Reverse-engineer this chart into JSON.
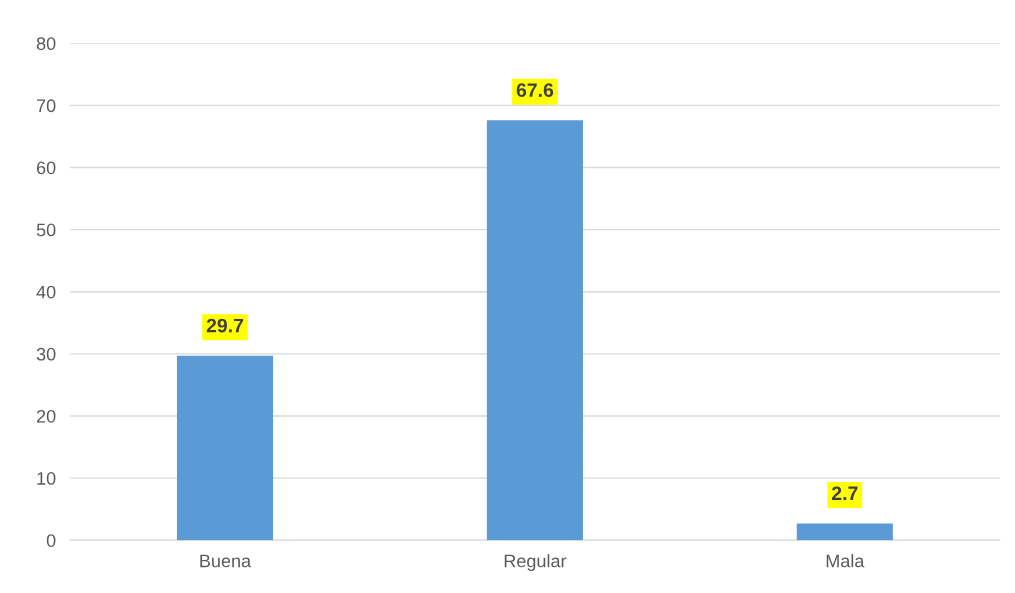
{
  "chart_data": {
    "type": "bar",
    "categories": [
      "Buena",
      "Regular",
      "Mala"
    ],
    "values": [
      29.7,
      67.6,
      2.7
    ],
    "color": "#5b9bd5",
    "ylim": [
      0,
      80
    ],
    "yticks": [
      0,
      10,
      20,
      30,
      40,
      50,
      60,
      70,
      80
    ],
    "grid": "y",
    "data_labels": true,
    "legend": false
  }
}
